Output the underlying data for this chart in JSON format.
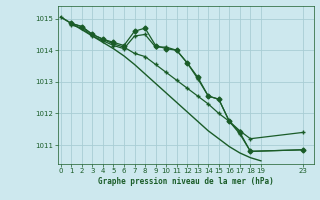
{
  "background_color": "#cde8ee",
  "grid_color": "#a8cdd4",
  "line_color": "#1a5c28",
  "title": "Graphe pression niveau de la mer (hPa)",
  "xlim": [
    -0.3,
    24.0
  ],
  "ylim": [
    1010.4,
    1015.4
  ],
  "xticks": [
    0,
    1,
    2,
    3,
    4,
    5,
    6,
    7,
    8,
    9,
    10,
    11,
    12,
    13,
    14,
    15,
    16,
    17,
    18,
    19,
    23
  ],
  "yticks": [
    1011,
    1012,
    1013,
    1014,
    1015
  ],
  "series": [
    {
      "x": [
        0,
        1,
        2,
        3,
        4,
        5,
        6,
        7,
        8,
        9,
        10,
        11,
        12,
        13,
        14,
        15,
        16,
        17,
        18,
        19
      ],
      "y": [
        1015.05,
        1014.85,
        1014.65,
        1014.45,
        1014.25,
        1014.05,
        1013.82,
        1013.55,
        1013.25,
        1012.95,
        1012.65,
        1012.35,
        1012.05,
        1011.75,
        1011.45,
        1011.2,
        1010.95,
        1010.75,
        1010.6,
        1010.5
      ],
      "marker": null,
      "linewidth": 1.0
    },
    {
      "x": [
        1,
        2,
        3,
        4,
        5,
        6,
        7,
        8,
        9,
        10,
        11,
        12,
        13,
        14,
        15,
        16,
        17,
        18,
        23
      ],
      "y": [
        1014.85,
        1014.75,
        1014.5,
        1014.35,
        1014.25,
        1014.15,
        1014.6,
        1014.7,
        1014.15,
        1014.05,
        1014.0,
        1013.6,
        1013.15,
        1012.55,
        1012.45,
        1011.75,
        1011.4,
        1010.8,
        1010.85
      ],
      "marker": "D",
      "markersize": 2.5,
      "linewidth": 0.9
    },
    {
      "x": [
        1,
        2,
        3,
        4,
        5,
        6,
        7,
        8,
        9,
        10,
        11,
        12,
        13,
        14,
        15,
        16,
        17,
        18,
        23
      ],
      "y": [
        1014.8,
        1014.7,
        1014.45,
        1014.3,
        1014.15,
        1014.05,
        1014.45,
        1014.5,
        1014.1,
        1014.1,
        1014.0,
        1013.6,
        1013.1,
        1012.55,
        1012.45,
        1011.75,
        1011.35,
        1010.8,
        1010.85
      ],
      "marker": "+",
      "markersize": 3.5,
      "linewidth": 0.9
    },
    {
      "x": [
        0,
        1,
        2,
        3,
        4,
        5,
        6,
        7,
        8,
        9,
        10,
        11,
        12,
        13,
        14,
        15,
        16,
        17,
        18,
        23
      ],
      "y": [
        1015.05,
        1014.85,
        1014.75,
        1014.5,
        1014.35,
        1014.2,
        1014.1,
        1013.9,
        1013.8,
        1013.55,
        1013.3,
        1013.05,
        1012.8,
        1012.55,
        1012.3,
        1012.0,
        1011.75,
        1011.45,
        1011.2,
        1011.4
      ],
      "marker": "+",
      "markersize": 3.5,
      "linewidth": 0.9
    }
  ]
}
